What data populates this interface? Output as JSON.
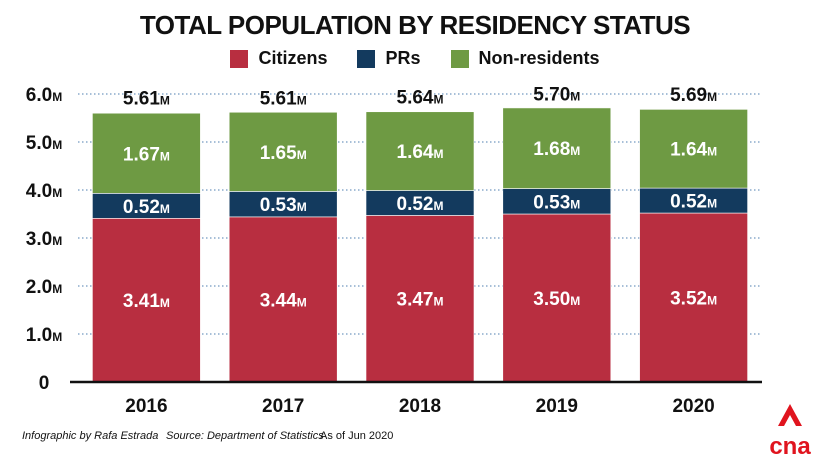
{
  "chart_data": {
    "type": "bar",
    "stacked": true,
    "title": "TOTAL POPULATION BY RESIDENCY STATUS",
    "categories": [
      "2016",
      "2017",
      "2018",
      "2019",
      "2020"
    ],
    "series": [
      {
        "name": "Citizens",
        "color": "#b82e40",
        "values": [
          3.41,
          3.44,
          3.47,
          3.5,
          3.52
        ],
        "labels": [
          "3.41",
          "3.44",
          "3.47",
          "3.50",
          "3.52"
        ]
      },
      {
        "name": "PRs",
        "color": "#133a5e",
        "values": [
          0.52,
          0.53,
          0.52,
          0.53,
          0.52
        ],
        "labels": [
          "0.52",
          "0.53",
          "0.52",
          "0.53",
          "0.52"
        ]
      },
      {
        "name": "Non-residents",
        "color": "#6e9a43",
        "values": [
          1.67,
          1.65,
          1.64,
          1.68,
          1.64
        ],
        "labels": [
          "1.67",
          "1.65",
          "1.64",
          "1.68",
          "1.64"
        ]
      }
    ],
    "totals": [
      5.61,
      5.61,
      5.64,
      5.7,
      5.69
    ],
    "total_labels": [
      "5.61",
      "5.61",
      "5.64",
      "5.70",
      "5.69"
    ],
    "unit_suffix": "M",
    "ylim": [
      0,
      6.0
    ],
    "yticks": [
      {
        "value": 0,
        "main": "0",
        "suffix": ""
      },
      {
        "value": 1,
        "main": "1.0",
        "suffix": "M"
      },
      {
        "value": 2,
        "main": "2.0",
        "suffix": "M"
      },
      {
        "value": 3,
        "main": "3.0",
        "suffix": "M"
      },
      {
        "value": 4,
        "main": "4.0",
        "suffix": "M"
      },
      {
        "value": 5,
        "main": "5.0",
        "suffix": "M"
      },
      {
        "value": 6,
        "main": "6.0",
        "suffix": "M"
      }
    ],
    "grid": true,
    "legend_position": "top-center"
  },
  "footer": {
    "credit": "Infographic by Rafa Estrada",
    "source": "Source: Department of Statistics",
    "as_of": "As of Jun 2020"
  },
  "logo": {
    "text": "cna",
    "color": "#e0141e"
  }
}
